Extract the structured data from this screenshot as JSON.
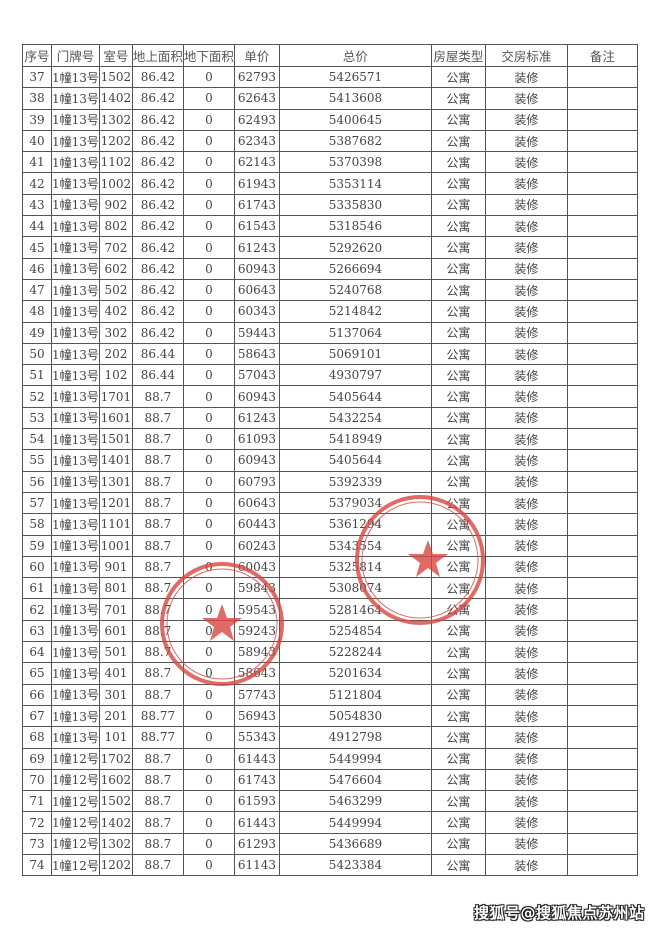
{
  "table": {
    "headers": [
      "序号",
      "门牌号",
      "室号",
      "地上面积",
      "地下面积",
      "单价",
      "总价",
      "房屋类型",
      "交房标准",
      "备注"
    ],
    "rows": [
      [
        "37",
        "1幢13号",
        "1502",
        "86.42",
        "0",
        "62793",
        "5426571",
        "公寓",
        "装修",
        ""
      ],
      [
        "38",
        "1幢13号",
        "1402",
        "86.42",
        "0",
        "62643",
        "5413608",
        "公寓",
        "装修",
        ""
      ],
      [
        "39",
        "1幢13号",
        "1302",
        "86.42",
        "0",
        "62493",
        "5400645",
        "公寓",
        "装修",
        ""
      ],
      [
        "40",
        "1幢13号",
        "1202",
        "86.42",
        "0",
        "62343",
        "5387682",
        "公寓",
        "装修",
        ""
      ],
      [
        "41",
        "1幢13号",
        "1102",
        "86.42",
        "0",
        "62143",
        "5370398",
        "公寓",
        "装修",
        ""
      ],
      [
        "42",
        "1幢13号",
        "1002",
        "86.42",
        "0",
        "61943",
        "5353114",
        "公寓",
        "装修",
        ""
      ],
      [
        "43",
        "1幢13号",
        "902",
        "86.42",
        "0",
        "61743",
        "5335830",
        "公寓",
        "装修",
        ""
      ],
      [
        "44",
        "1幢13号",
        "802",
        "86.42",
        "0",
        "61543",
        "5318546",
        "公寓",
        "装修",
        ""
      ],
      [
        "45",
        "1幢13号",
        "702",
        "86.42",
        "0",
        "61243",
        "5292620",
        "公寓",
        "装修",
        ""
      ],
      [
        "46",
        "1幢13号",
        "602",
        "86.42",
        "0",
        "60943",
        "5266694",
        "公寓",
        "装修",
        ""
      ],
      [
        "47",
        "1幢13号",
        "502",
        "86.42",
        "0",
        "60643",
        "5240768",
        "公寓",
        "装修",
        ""
      ],
      [
        "48",
        "1幢13号",
        "402",
        "86.42",
        "0",
        "60343",
        "5214842",
        "公寓",
        "装修",
        ""
      ],
      [
        "49",
        "1幢13号",
        "302",
        "86.42",
        "0",
        "59443",
        "5137064",
        "公寓",
        "装修",
        ""
      ],
      [
        "50",
        "1幢13号",
        "202",
        "86.44",
        "0",
        "58643",
        "5069101",
        "公寓",
        "装修",
        ""
      ],
      [
        "51",
        "1幢13号",
        "102",
        "86.44",
        "0",
        "57043",
        "4930797",
        "公寓",
        "装修",
        ""
      ],
      [
        "52",
        "1幢13号",
        "1701",
        "88.7",
        "0",
        "60943",
        "5405644",
        "公寓",
        "装修",
        ""
      ],
      [
        "53",
        "1幢13号",
        "1601",
        "88.7",
        "0",
        "61243",
        "5432254",
        "公寓",
        "装修",
        ""
      ],
      [
        "54",
        "1幢13号",
        "1501",
        "88.7",
        "0",
        "61093",
        "5418949",
        "公寓",
        "装修",
        ""
      ],
      [
        "55",
        "1幢13号",
        "1401",
        "88.7",
        "0",
        "60943",
        "5405644",
        "公寓",
        "装修",
        ""
      ],
      [
        "56",
        "1幢13号",
        "1301",
        "88.7",
        "0",
        "60793",
        "5392339",
        "公寓",
        "装修",
        ""
      ],
      [
        "57",
        "1幢13号",
        "1201",
        "88.7",
        "0",
        "60643",
        "5379034",
        "公寓",
        "装修",
        ""
      ],
      [
        "58",
        "1幢13号",
        "1101",
        "88.7",
        "0",
        "60443",
        "5361294",
        "公寓",
        "装修",
        ""
      ],
      [
        "59",
        "1幢13号",
        "1001",
        "88.7",
        "0",
        "60243",
        "5343554",
        "公寓",
        "装修",
        ""
      ],
      [
        "60",
        "1幢13号",
        "901",
        "88.7",
        "0",
        "60043",
        "5325814",
        "公寓",
        "装修",
        ""
      ],
      [
        "61",
        "1幢13号",
        "801",
        "88.7",
        "0",
        "59843",
        "5308074",
        "公寓",
        "装修",
        ""
      ],
      [
        "62",
        "1幢13号",
        "701",
        "88.7",
        "0",
        "59543",
        "5281464",
        "公寓",
        "装修",
        ""
      ],
      [
        "63",
        "1幢13号",
        "601",
        "88.7",
        "0",
        "59243",
        "5254854",
        "公寓",
        "装修",
        ""
      ],
      [
        "64",
        "1幢13号",
        "501",
        "88.7",
        "0",
        "58943",
        "5228244",
        "公寓",
        "装修",
        ""
      ],
      [
        "65",
        "1幢13号",
        "401",
        "88.7",
        "0",
        "58643",
        "5201634",
        "公寓",
        "装修",
        ""
      ],
      [
        "66",
        "1幢13号",
        "301",
        "88.7",
        "0",
        "57743",
        "5121804",
        "公寓",
        "装修",
        ""
      ],
      [
        "67",
        "1幢13号",
        "201",
        "88.77",
        "0",
        "56943",
        "5054830",
        "公寓",
        "装修",
        ""
      ],
      [
        "68",
        "1幢13号",
        "101",
        "88.77",
        "0",
        "55343",
        "4912798",
        "公寓",
        "装修",
        ""
      ],
      [
        "69",
        "1幢12号",
        "1702",
        "88.7",
        "0",
        "61443",
        "5449994",
        "公寓",
        "装修",
        ""
      ],
      [
        "70",
        "1幢12号",
        "1602",
        "88.7",
        "0",
        "61743",
        "5476604",
        "公寓",
        "装修",
        ""
      ],
      [
        "71",
        "1幢12号",
        "1502",
        "88.7",
        "0",
        "61593",
        "5463299",
        "公寓",
        "装修",
        ""
      ],
      [
        "72",
        "1幢12号",
        "1402",
        "88.7",
        "0",
        "61443",
        "5449994",
        "公寓",
        "装修",
        ""
      ],
      [
        "73",
        "1幢12号",
        "1302",
        "88.7",
        "0",
        "61293",
        "5436689",
        "公寓",
        "装修",
        ""
      ],
      [
        "74",
        "1幢12号",
        "1202",
        "88.7",
        "0",
        "61143",
        "5423384",
        "公寓",
        "装修",
        ""
      ]
    ]
  },
  "stamps": {
    "color": "#d9453f",
    "icon": "star"
  },
  "watermark": "搜狐号@搜狐焦点苏州站"
}
